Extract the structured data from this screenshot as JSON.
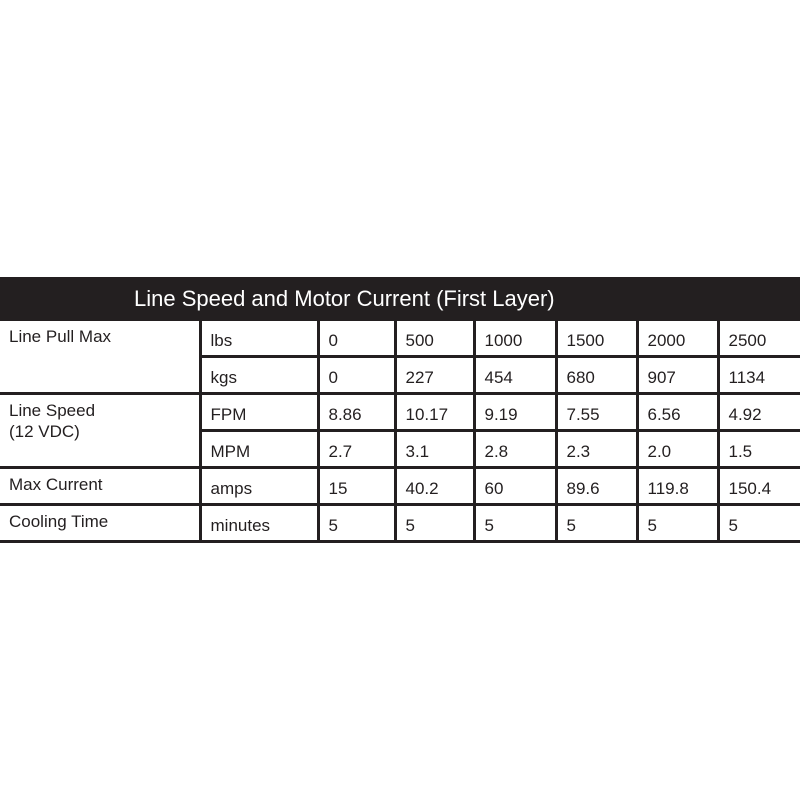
{
  "title": "Line Speed and Motor Current (First Layer)",
  "rows": [
    {
      "label": "Line Pull Max",
      "sub": [
        {
          "unit": "lbs",
          "values": [
            "0",
            "500",
            "1000",
            "1500",
            "2000",
            "2500"
          ]
        },
        {
          "unit": "kgs",
          "values": [
            "0",
            "227",
            "454",
            "680",
            "907",
            "1134"
          ]
        }
      ]
    },
    {
      "label": "Line Speed",
      "label2": "(12 VDC)",
      "sub": [
        {
          "unit": "FPM",
          "values": [
            "8.86",
            "10.17",
            "9.19",
            "7.55",
            "6.56",
            "4.92"
          ]
        },
        {
          "unit": "MPM",
          "values": [
            "2.7",
            "3.1",
            "2.8",
            "2.3",
            "2.0",
            "1.5"
          ]
        }
      ]
    },
    {
      "label": "Max Current",
      "sub": [
        {
          "unit": "amps",
          "values": [
            "15",
            "40.2",
            "60",
            "89.6",
            "119.8",
            "150.4"
          ]
        }
      ]
    },
    {
      "label": "Cooling Time",
      "sub": [
        {
          "unit": "minutes",
          "values": [
            "5",
            "5",
            "5",
            "5",
            "5",
            "5"
          ]
        }
      ]
    }
  ]
}
